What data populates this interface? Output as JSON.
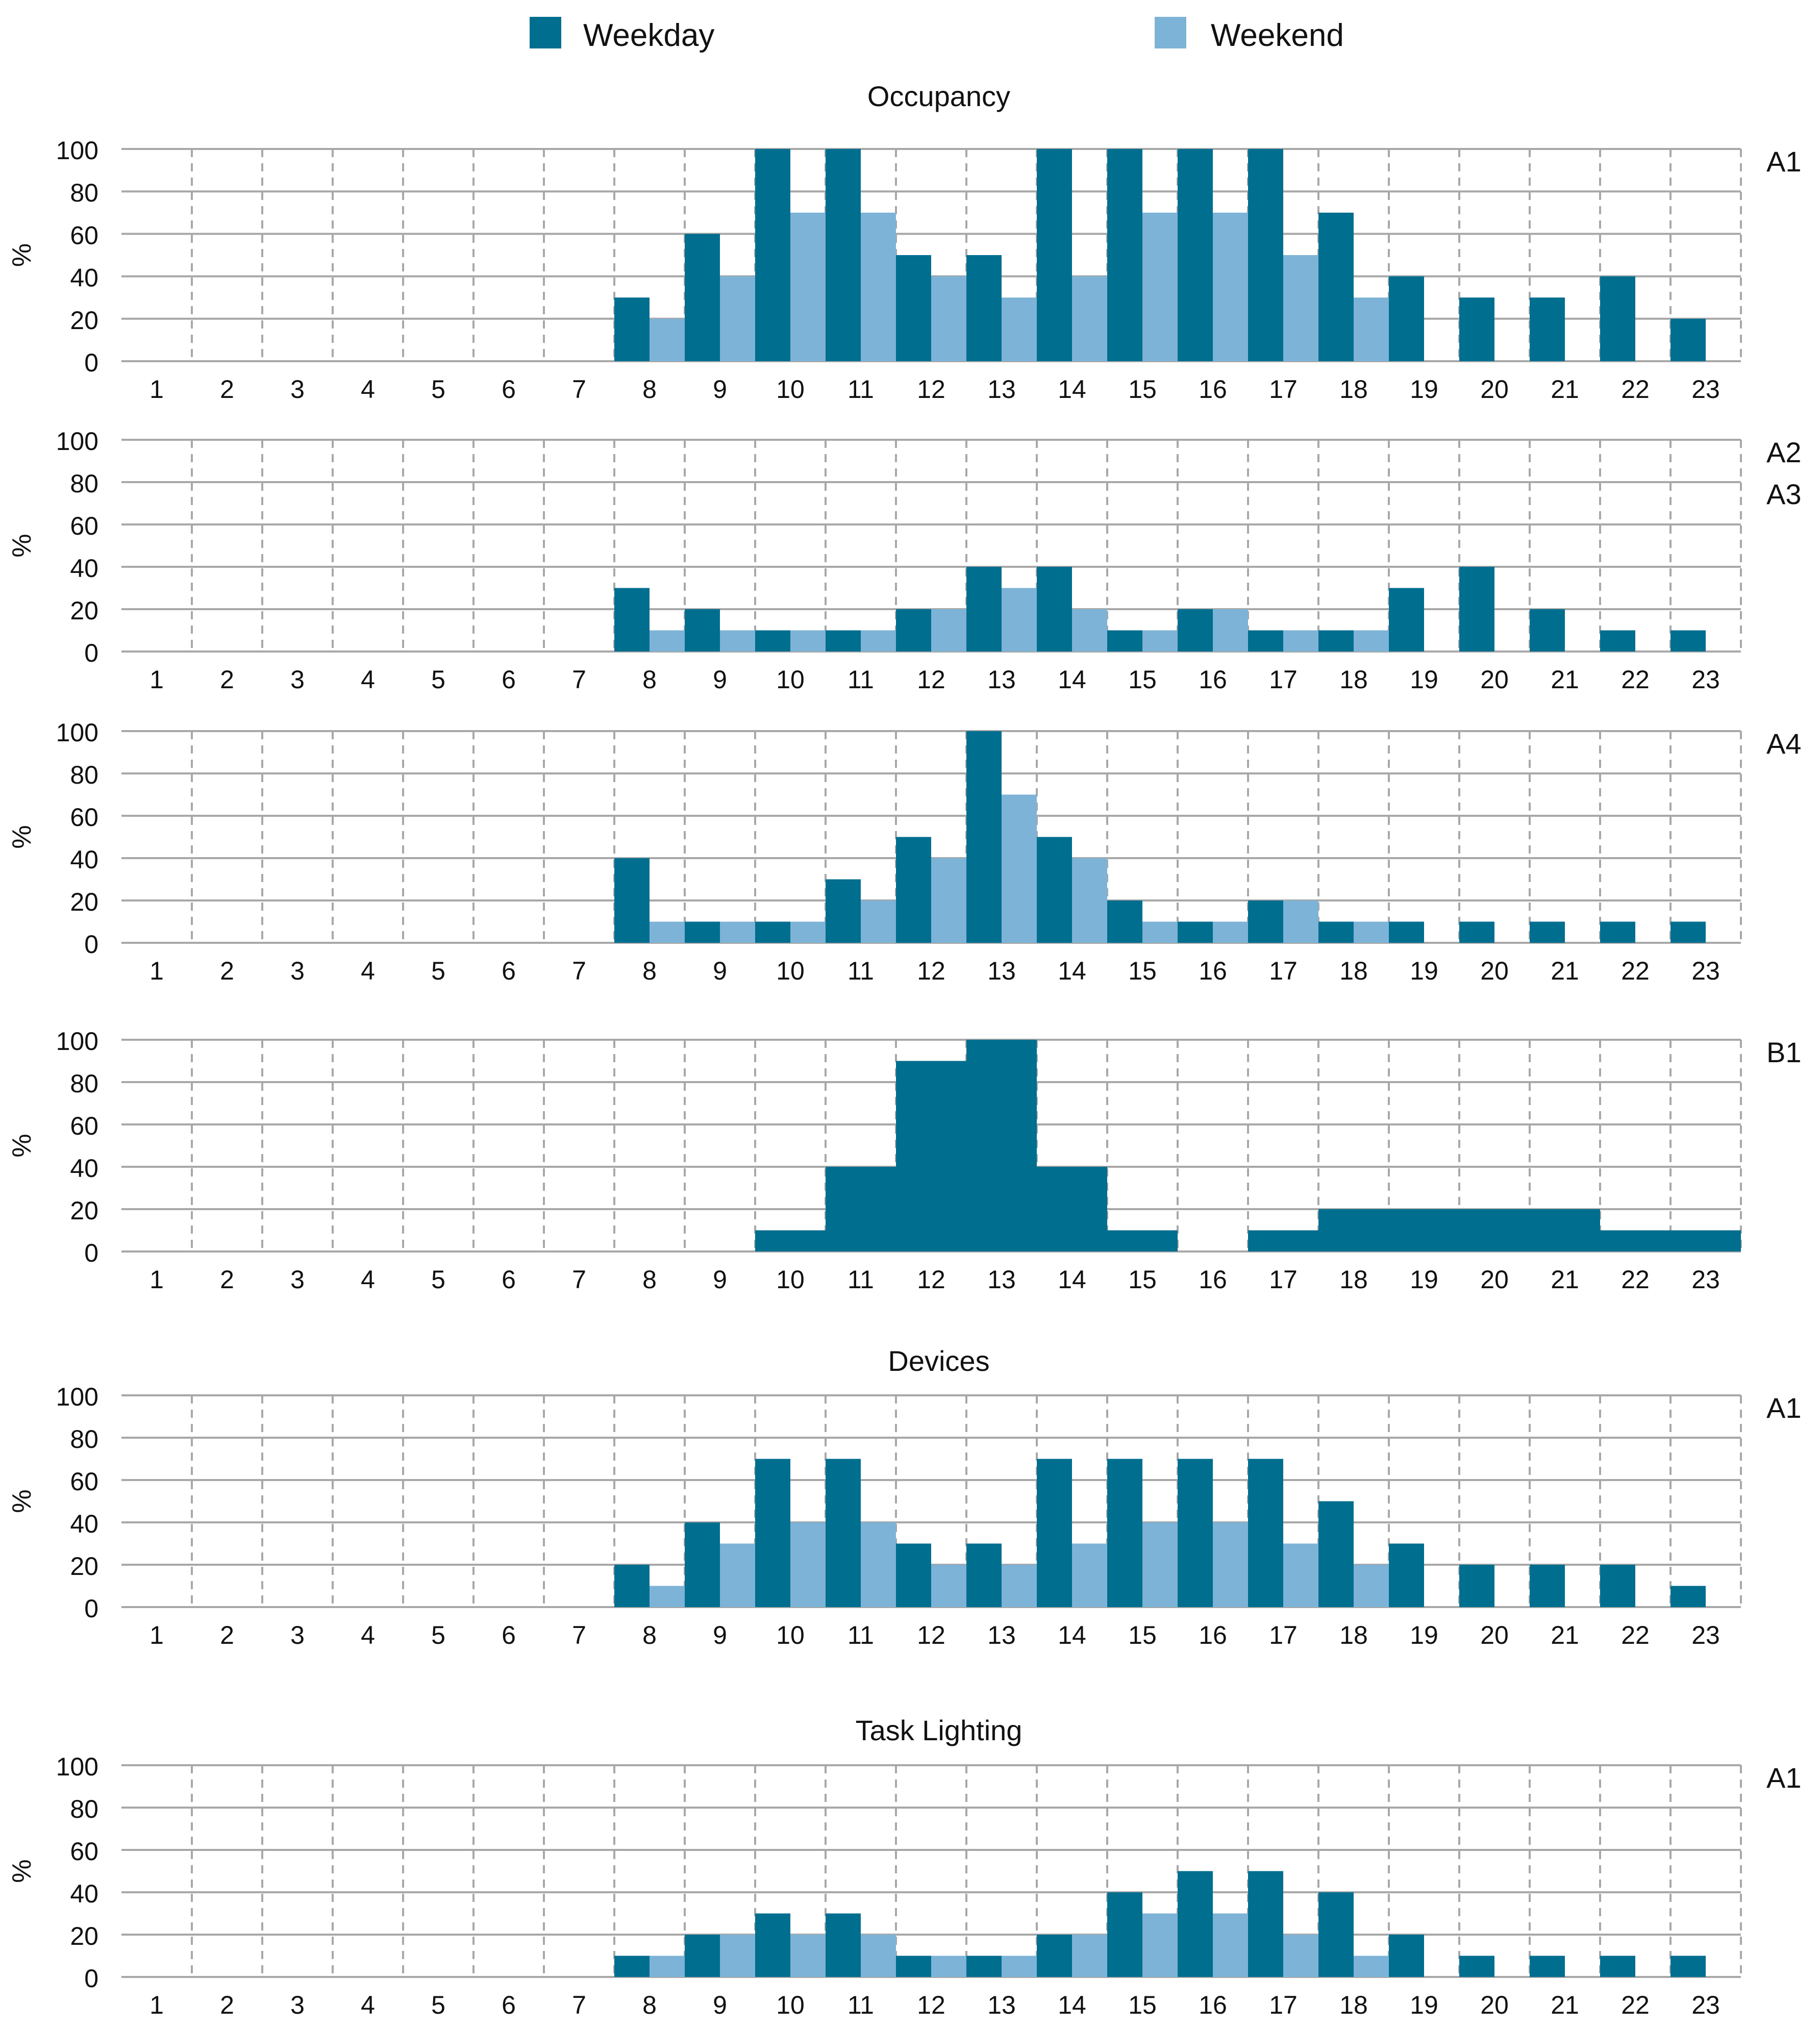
{
  "legend": {
    "items": [
      {
        "label": "Weekday",
        "color": "#006e8f"
      },
      {
        "label": "Weekend",
        "color": "#7db3d6"
      }
    ]
  },
  "sections": {
    "occupancy": "Occupancy",
    "devices": "Devices",
    "task_lighting": "Task Lighting"
  },
  "chart_data": [
    {
      "type": "bar",
      "section": "Occupancy",
      "panel_label": "A1",
      "ylabel": "%",
      "ylim": [
        0,
        100
      ],
      "yticks": [
        0,
        20,
        40,
        60,
        80,
        100
      ],
      "categories": [
        "1",
        "2",
        "3",
        "4",
        "5",
        "6",
        "7",
        "8",
        "9",
        "10",
        "11",
        "12",
        "13",
        "14",
        "15",
        "16",
        "17",
        "18",
        "19",
        "20",
        "21",
        "22",
        "23"
      ],
      "series": [
        {
          "name": "Weekday",
          "values": [
            0,
            0,
            0,
            0,
            0,
            0,
            0,
            30,
            60,
            100,
            100,
            50,
            50,
            100,
            100,
            100,
            100,
            70,
            40,
            30,
            30,
            40,
            20
          ]
        },
        {
          "name": "Weekend",
          "values": [
            0,
            0,
            0,
            0,
            0,
            0,
            0,
            20,
            40,
            70,
            70,
            40,
            30,
            40,
            70,
            70,
            50,
            30,
            0,
            0,
            0,
            0,
            0
          ]
        }
      ]
    },
    {
      "type": "bar",
      "section": "Occupancy",
      "panel_label": "A2\nA3",
      "ylabel": "%",
      "ylim": [
        0,
        100
      ],
      "yticks": [
        0,
        20,
        40,
        60,
        80,
        100
      ],
      "categories": [
        "1",
        "2",
        "3",
        "4",
        "5",
        "6",
        "7",
        "8",
        "9",
        "10",
        "11",
        "12",
        "13",
        "14",
        "15",
        "16",
        "17",
        "18",
        "19",
        "20",
        "21",
        "22",
        "23"
      ],
      "series": [
        {
          "name": "Weekday",
          "values": [
            0,
            0,
            0,
            0,
            0,
            0,
            0,
            30,
            20,
            10,
            10,
            20,
            40,
            40,
            10,
            20,
            10,
            10,
            30,
            40,
            20,
            10,
            10
          ]
        },
        {
          "name": "Weekend",
          "values": [
            0,
            0,
            0,
            0,
            0,
            0,
            0,
            10,
            10,
            10,
            10,
            20,
            30,
            20,
            10,
            20,
            10,
            10,
            0,
            0,
            0,
            0,
            0
          ]
        }
      ]
    },
    {
      "type": "bar",
      "section": "Occupancy",
      "panel_label": "A4",
      "ylabel": "%",
      "ylim": [
        0,
        100
      ],
      "yticks": [
        0,
        20,
        40,
        60,
        80,
        100
      ],
      "categories": [
        "1",
        "2",
        "3",
        "4",
        "5",
        "6",
        "7",
        "8",
        "9",
        "10",
        "11",
        "12",
        "13",
        "14",
        "15",
        "16",
        "17",
        "18",
        "19",
        "20",
        "21",
        "22",
        "23"
      ],
      "series": [
        {
          "name": "Weekday",
          "values": [
            0,
            0,
            0,
            0,
            0,
            0,
            0,
            40,
            10,
            10,
            30,
            50,
            100,
            50,
            20,
            10,
            20,
            10,
            10,
            10,
            10,
            10,
            10
          ]
        },
        {
          "name": "Weekend",
          "values": [
            0,
            0,
            0,
            0,
            0,
            0,
            0,
            10,
            10,
            10,
            20,
            40,
            70,
            40,
            10,
            10,
            20,
            10,
            0,
            0,
            0,
            0,
            0
          ]
        }
      ]
    },
    {
      "type": "bar",
      "section": "Occupancy",
      "panel_label": "B1",
      "ylabel": "%",
      "ylim": [
        0,
        100
      ],
      "yticks": [
        0,
        20,
        40,
        60,
        80,
        100
      ],
      "categories": [
        "1",
        "2",
        "3",
        "4",
        "5",
        "6",
        "7",
        "8",
        "9",
        "10",
        "11",
        "12",
        "13",
        "14",
        "15",
        "16",
        "17",
        "18",
        "19",
        "20",
        "21",
        "22",
        "23"
      ],
      "series": [
        {
          "name": "Weekday",
          "values": [
            0,
            0,
            0,
            0,
            0,
            0,
            0,
            0,
            0,
            10,
            40,
            90,
            100,
            40,
            10,
            0,
            10,
            20,
            20,
            20,
            20,
            10,
            10
          ]
        }
      ]
    },
    {
      "type": "bar",
      "section": "Devices",
      "panel_label": "A1",
      "ylabel": "%",
      "ylim": [
        0,
        100
      ],
      "yticks": [
        0,
        20,
        40,
        60,
        80,
        100
      ],
      "categories": [
        "1",
        "2",
        "3",
        "4",
        "5",
        "6",
        "7",
        "8",
        "9",
        "10",
        "11",
        "12",
        "13",
        "14",
        "15",
        "16",
        "17",
        "18",
        "19",
        "20",
        "21",
        "22",
        "23"
      ],
      "series": [
        {
          "name": "Weekday",
          "values": [
            0,
            0,
            0,
            0,
            0,
            0,
            0,
            20,
            40,
            70,
            70,
            30,
            30,
            70,
            70,
            70,
            70,
            50,
            30,
            20,
            20,
            20,
            10
          ]
        },
        {
          "name": "Weekend",
          "values": [
            0,
            0,
            0,
            0,
            0,
            0,
            0,
            10,
            30,
            40,
            40,
            20,
            20,
            30,
            40,
            40,
            30,
            20,
            0,
            0,
            0,
            0,
            0
          ]
        }
      ]
    },
    {
      "type": "bar",
      "section": "Task Lighting",
      "panel_label": "A1",
      "ylabel": "%",
      "ylim": [
        0,
        100
      ],
      "yticks": [
        0,
        20,
        40,
        60,
        80,
        100
      ],
      "categories": [
        "1",
        "2",
        "3",
        "4",
        "5",
        "6",
        "7",
        "8",
        "9",
        "10",
        "11",
        "12",
        "13",
        "14",
        "15",
        "16",
        "17",
        "18",
        "19",
        "20",
        "21",
        "22",
        "23"
      ],
      "series": [
        {
          "name": "Weekday",
          "values": [
            0,
            0,
            0,
            0,
            0,
            0,
            0,
            10,
            20,
            30,
            30,
            10,
            10,
            20,
            40,
            50,
            50,
            40,
            20,
            10,
            10,
            10,
            10
          ]
        },
        {
          "name": "Weekend",
          "values": [
            0,
            0,
            0,
            0,
            0,
            0,
            0,
            10,
            20,
            20,
            20,
            10,
            10,
            20,
            30,
            30,
            20,
            10,
            0,
            0,
            0,
            0,
            0
          ]
        }
      ]
    }
  ]
}
